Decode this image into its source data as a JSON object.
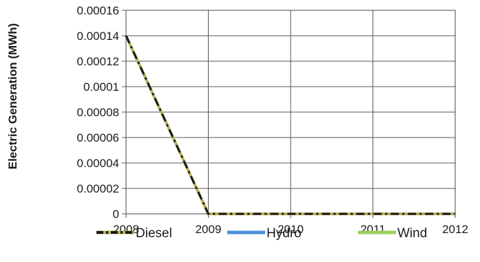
{
  "chart_data": {
    "type": "line",
    "title": "",
    "xlabel": "",
    "ylabel": "Electric Generation (MWh)",
    "x": [
      2008,
      2009,
      2010,
      2011,
      2012
    ],
    "x_tick_labels": [
      "2008",
      "2009",
      "2010",
      "2011",
      "2012"
    ],
    "y_tick_labels": [
      "0",
      "0.00002",
      "0.00004",
      "0.00006",
      "0.00008",
      "0.0001",
      "0.00012",
      "0.00014",
      "0.00016"
    ],
    "ylim": [
      0,
      0.00016
    ],
    "xlim": [
      2008,
      2012
    ],
    "grid": true,
    "legend_position": "bottom",
    "series": [
      {
        "name": "Diesel",
        "values": [
          0.00014,
          0,
          0,
          0,
          0
        ],
        "color": "#1a1a1a",
        "dash_color": "#b5b05a"
      },
      {
        "name": "Hydro",
        "values": [
          0.00014,
          0,
          0,
          0,
          0
        ],
        "color": "#4a90d9"
      },
      {
        "name": "Wind",
        "values": [
          0.00014,
          0,
          0,
          0,
          0
        ],
        "color": "#9acd5a"
      }
    ]
  }
}
